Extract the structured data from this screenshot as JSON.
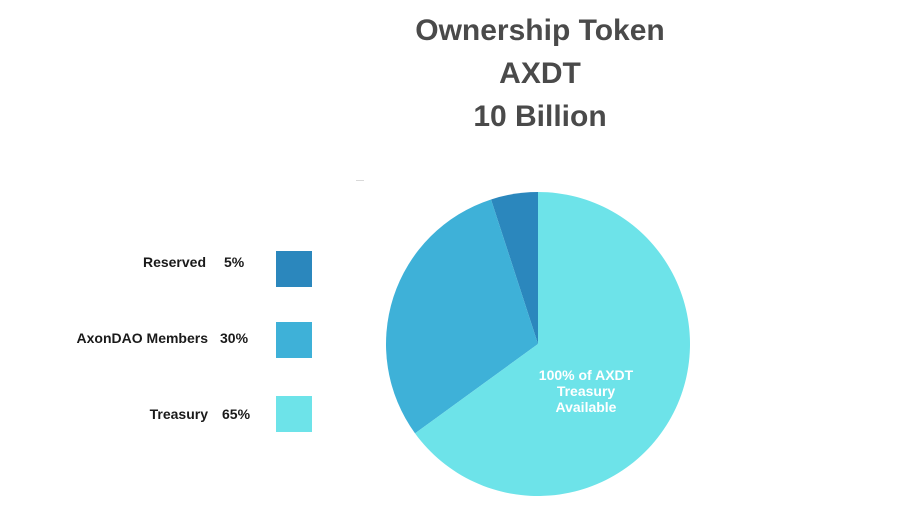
{
  "chart_data": {
    "type": "pie",
    "title_lines": [
      "Ownership Token",
      "AXDT",
      "10 Billion"
    ],
    "slices": [
      {
        "label": "Reserved",
        "percent_label": "5%",
        "value": 5,
        "color": "#2b87bd"
      },
      {
        "label": "AxonDAO Members",
        "percent_label": "30%",
        "value": 30,
        "color": "#3eb1d8"
      },
      {
        "label": "Treasury",
        "percent_label": "65%",
        "value": 65,
        "color": "#6de3e9"
      }
    ],
    "slice_annotation_lines": [
      "100% of AXDT",
      "Treasury",
      "Available"
    ],
    "legend_position": "left"
  }
}
